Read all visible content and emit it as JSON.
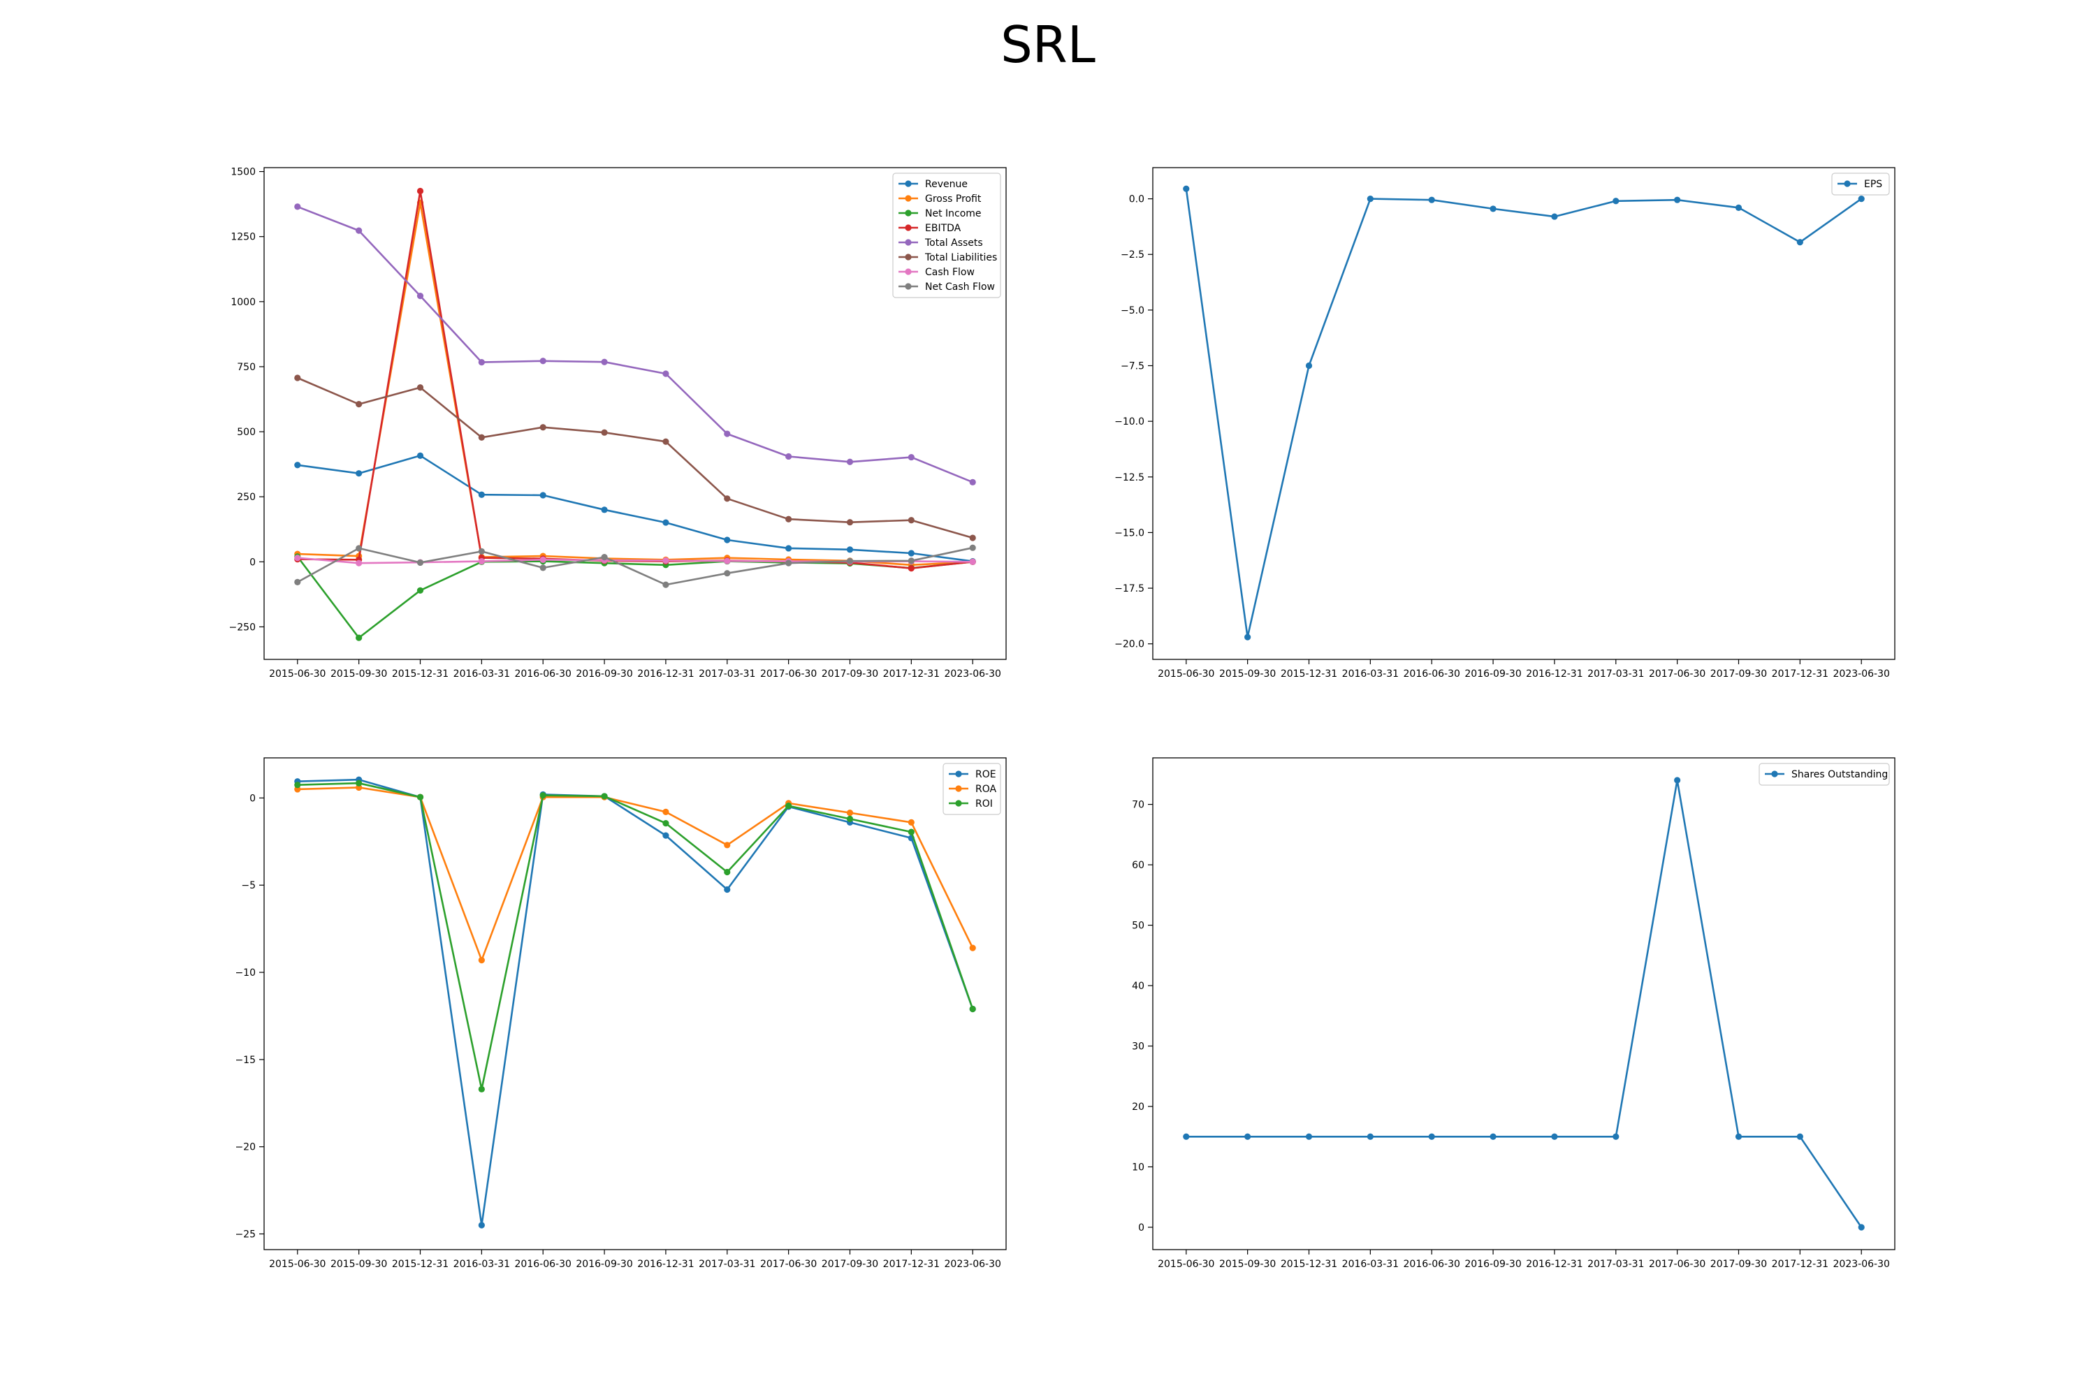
{
  "figure": {
    "title": "SRL"
  },
  "chart_data": [
    {
      "id": "financials",
      "type": "line",
      "x": [
        "2015-06-30",
        "2015-09-30",
        "2015-12-31",
        "2016-03-31",
        "2016-06-30",
        "2016-09-30",
        "2016-12-31",
        "2017-03-31",
        "2017-06-30",
        "2017-09-30",
        "2017-12-31",
        "2023-06-30"
      ],
      "ylim": [
        -375,
        1515
      ],
      "yticks": [
        -250,
        0,
        250,
        500,
        750,
        1000,
        1250,
        1500
      ],
      "legend": "top-right",
      "series": [
        {
          "name": "Revenue",
          "color": "#1f77b4",
          "values": [
            372,
            340,
            408,
            258,
            256,
            200,
            151,
            84,
            52,
            47,
            33,
            2
          ]
        },
        {
          "name": "Gross Profit",
          "color": "#ff7f0e",
          "values": [
            30,
            22,
            1380,
            18,
            22,
            13,
            8,
            15,
            9,
            4,
            -12,
            0
          ]
        },
        {
          "name": "Net Income",
          "color": "#2ca02c",
          "values": [
            20,
            -292,
            -110,
            0,
            2,
            -5,
            -12,
            2,
            -3,
            -6,
            -24,
            0
          ]
        },
        {
          "name": "EBITDA",
          "color": "#d62728",
          "values": [
            10,
            8,
            1425,
            15,
            12,
            4,
            2,
            5,
            1,
            -3,
            -25,
            0
          ]
        },
        {
          "name": "Total Assets",
          "color": "#9467bd",
          "values": [
            1365,
            1273,
            1022,
            767,
            772,
            768,
            723,
            492,
            405,
            384,
            402,
            306
          ]
        },
        {
          "name": "Total Liabilities",
          "color": "#8c564b",
          "values": [
            707,
            606,
            670,
            478,
            517,
            497,
            462,
            243,
            164,
            152,
            160,
            92
          ]
        },
        {
          "name": "Cash Flow",
          "color": "#e377c2",
          "values": [
            15,
            -5,
            -2,
            2,
            8,
            6,
            5,
            3,
            2,
            1,
            2,
            0
          ]
        },
        {
          "name": "Net Cash Flow",
          "color": "#7f7f7f",
          "values": [
            -78,
            52,
            -3,
            40,
            -23,
            18,
            -88,
            -44,
            -5,
            3,
            4,
            54
          ]
        }
      ]
    },
    {
      "id": "eps",
      "type": "line",
      "x": [
        "2015-06-30",
        "2015-09-30",
        "2015-12-31",
        "2016-03-31",
        "2016-06-30",
        "2016-09-30",
        "2016-12-31",
        "2017-03-31",
        "2017-06-30",
        "2017-09-30",
        "2017-12-31",
        "2023-06-30"
      ],
      "ylim": [
        -20.7,
        1.4
      ],
      "yticks": [
        -20.0,
        -17.5,
        -15.0,
        -12.5,
        -10.0,
        -7.5,
        -5.0,
        -2.5,
        0.0
      ],
      "ytick_format": "1",
      "legend": "top-right",
      "series": [
        {
          "name": "EPS",
          "color": "#1f77b4",
          "values": [
            0.45,
            -19.7,
            -7.5,
            0.0,
            -0.05,
            -0.45,
            -0.8,
            -0.1,
            -0.05,
            -0.4,
            -1.95,
            0.0
          ]
        }
      ]
    },
    {
      "id": "ratios",
      "type": "line",
      "x": [
        "2015-06-30",
        "2015-09-30",
        "2015-12-31",
        "2016-03-31",
        "2016-06-30",
        "2016-09-30",
        "2016-12-31",
        "2017-03-31",
        "2017-06-30",
        "2017-09-30",
        "2017-12-31",
        "2023-06-30"
      ],
      "ylim": [
        -25.9,
        2.3
      ],
      "yticks": [
        -25,
        -20,
        -15,
        -10,
        -5,
        0
      ],
      "legend": "top-right",
      "series": [
        {
          "name": "ROE",
          "color": "#1f77b4",
          "values": [
            0.95,
            1.05,
            0.05,
            -24.5,
            0.2,
            0.1,
            -2.15,
            -5.25,
            -0.5,
            -1.4,
            -2.3,
            -12.1
          ]
        },
        {
          "name": "ROA",
          "color": "#ff7f0e",
          "values": [
            0.5,
            0.6,
            0.05,
            -9.3,
            0.05,
            0.05,
            -0.8,
            -2.7,
            -0.3,
            -0.85,
            -1.4,
            -8.6
          ]
        },
        {
          "name": "ROI",
          "color": "#2ca02c",
          "values": [
            0.75,
            0.85,
            0.05,
            -16.7,
            0.15,
            0.1,
            -1.45,
            -4.25,
            -0.45,
            -1.2,
            -1.95,
            -12.1
          ]
        }
      ]
    },
    {
      "id": "shares",
      "type": "line",
      "x": [
        "2015-06-30",
        "2015-09-30",
        "2015-12-31",
        "2016-03-31",
        "2016-06-30",
        "2016-09-30",
        "2016-12-31",
        "2017-03-31",
        "2017-06-30",
        "2017-09-30",
        "2017-12-31",
        "2023-06-30"
      ],
      "ylim": [
        -3.7,
        77.7
      ],
      "yticks": [
        0,
        10,
        20,
        30,
        40,
        50,
        60,
        70
      ],
      "legend": "top-right",
      "series": [
        {
          "name": "Shares Outstanding",
          "color": "#1f77b4",
          "values": [
            15,
            15,
            15,
            15,
            15,
            15,
            15,
            15,
            74,
            15,
            15,
            0
          ]
        }
      ]
    }
  ]
}
